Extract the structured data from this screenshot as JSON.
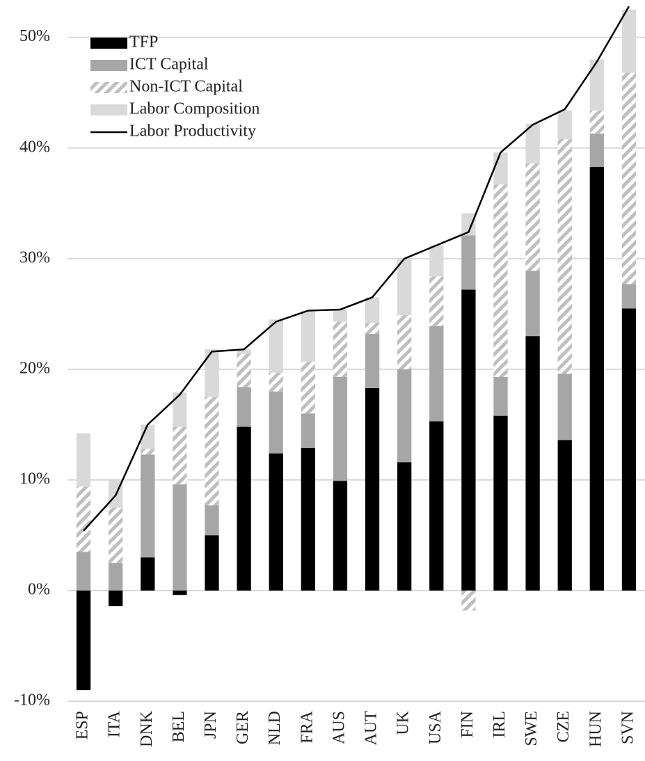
{
  "chart_data": {
    "type": "bar",
    "stacked": true,
    "grid": true,
    "legend": "upper left",
    "categories": [
      "ESP",
      "ITA",
      "DNK",
      "BEL",
      "JPN",
      "GER",
      "NLD",
      "FRA",
      "AUS",
      "AUT",
      "UK",
      "USA",
      "FIN",
      "IRL",
      "SWE",
      "CZE",
      "HUN",
      "SVN"
    ],
    "series": [
      {
        "name": "TFP",
        "color": "#000000",
        "values": [
          -9.0,
          -1.4,
          3.0,
          -0.4,
          5.0,
          14.8,
          12.4,
          12.9,
          9.9,
          18.3,
          11.6,
          15.3,
          27.2,
          15.8,
          23.0,
          13.6,
          38.3,
          25.5
        ]
      },
      {
        "name": "ICT Capital",
        "color": "#a6a6a6",
        "values": [
          3.5,
          2.5,
          9.3,
          9.6,
          2.7,
          3.6,
          5.6,
          3.1,
          9.4,
          4.9,
          8.4,
          8.6,
          4.9,
          3.5,
          5.9,
          6.0,
          3.0,
          2.2
        ]
      },
      {
        "name": "Non-ICT Capital",
        "color": "#bfbfbf",
        "hatch": true,
        "values": [
          5.9,
          5.0,
          0.5,
          5.2,
          9.8,
          3.0,
          1.7,
          4.7,
          5.0,
          1.0,
          4.9,
          4.5,
          -1.8,
          17.4,
          9.7,
          21.2,
          2.1,
          19.1
        ]
      },
      {
        "name": "Labor Composition",
        "color": "#d9d9d9",
        "values": [
          4.8,
          2.5,
          2.2,
          3.1,
          4.3,
          0.4,
          4.8,
          4.6,
          1.1,
          2.3,
          5.1,
          2.8,
          2.0,
          2.9,
          3.6,
          2.6,
          4.6,
          5.7
        ]
      },
      {
        "name": "Labor Productivity",
        "color": "#000000",
        "type": "line",
        "values": [
          5.4,
          8.6,
          15.0,
          17.7,
          21.6,
          21.8,
          24.3,
          25.3,
          25.4,
          26.5,
          30.0,
          31.2,
          32.4,
          39.6,
          42.1,
          43.5,
          47.8,
          52.8
        ]
      }
    ],
    "ylim": [
      -10,
      53
    ],
    "yticks": [
      {
        "value": -10,
        "label": "-10%"
      },
      {
        "value": 0,
        "label": "0%"
      },
      {
        "value": 10,
        "label": "10%"
      },
      {
        "value": 20,
        "label": "20%"
      },
      {
        "value": 30,
        "label": "30%"
      },
      {
        "value": 40,
        "label": "40%"
      },
      {
        "value": 50,
        "label": "50%"
      }
    ]
  }
}
